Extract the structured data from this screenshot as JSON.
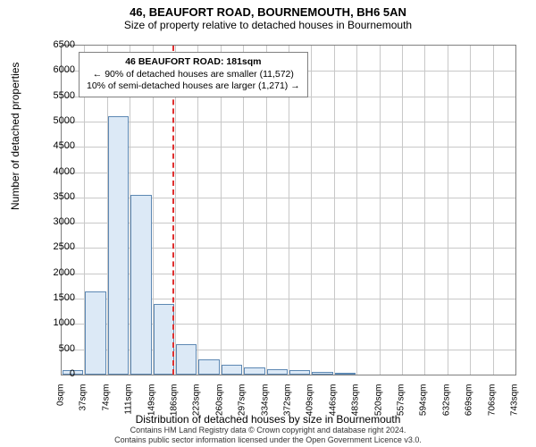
{
  "title_main": "46, BEAUFORT ROAD, BOURNEMOUTH, BH6 5AN",
  "title_sub": "Size of property relative to detached houses in Bournemouth",
  "ylabel": "Number of detached properties",
  "xlabel": "Distribution of detached houses by size in Bournemouth",
  "plot": {
    "y_max": 6500,
    "y_tick_step": 500,
    "x_labels": [
      "0sqm",
      "37sqm",
      "74sqm",
      "111sqm",
      "149sqm",
      "186sqm",
      "223sqm",
      "260sqm",
      "297sqm",
      "334sqm",
      "372sqm",
      "409sqm",
      "446sqm",
      "483sqm",
      "520sqm",
      "557sqm",
      "594sqm",
      "632sqm",
      "669sqm",
      "706sqm",
      "743sqm"
    ],
    "bar_values": [
      90,
      1650,
      5100,
      3550,
      1400,
      600,
      300,
      200,
      150,
      110,
      80,
      60,
      40,
      0,
      0,
      0,
      0,
      0,
      0,
      0
    ],
    "bar_fill": "#dce9f6",
    "bar_stroke": "#5d88b3",
    "grid_color": "#c8c8c8",
    "reference_sqm": 181,
    "reference_color": "#e03030"
  },
  "info_box": {
    "line1": "46 BEAUFORT ROAD: 181sqm",
    "line2": "← 90% of detached houses are smaller (11,572)",
    "line3": "10% of semi-detached houses are larger (1,271) →"
  },
  "footer1": "Contains HM Land Registry data © Crown copyright and database right 2024.",
  "footer2": "Contains public sector information licensed under the Open Government Licence v3.0."
}
